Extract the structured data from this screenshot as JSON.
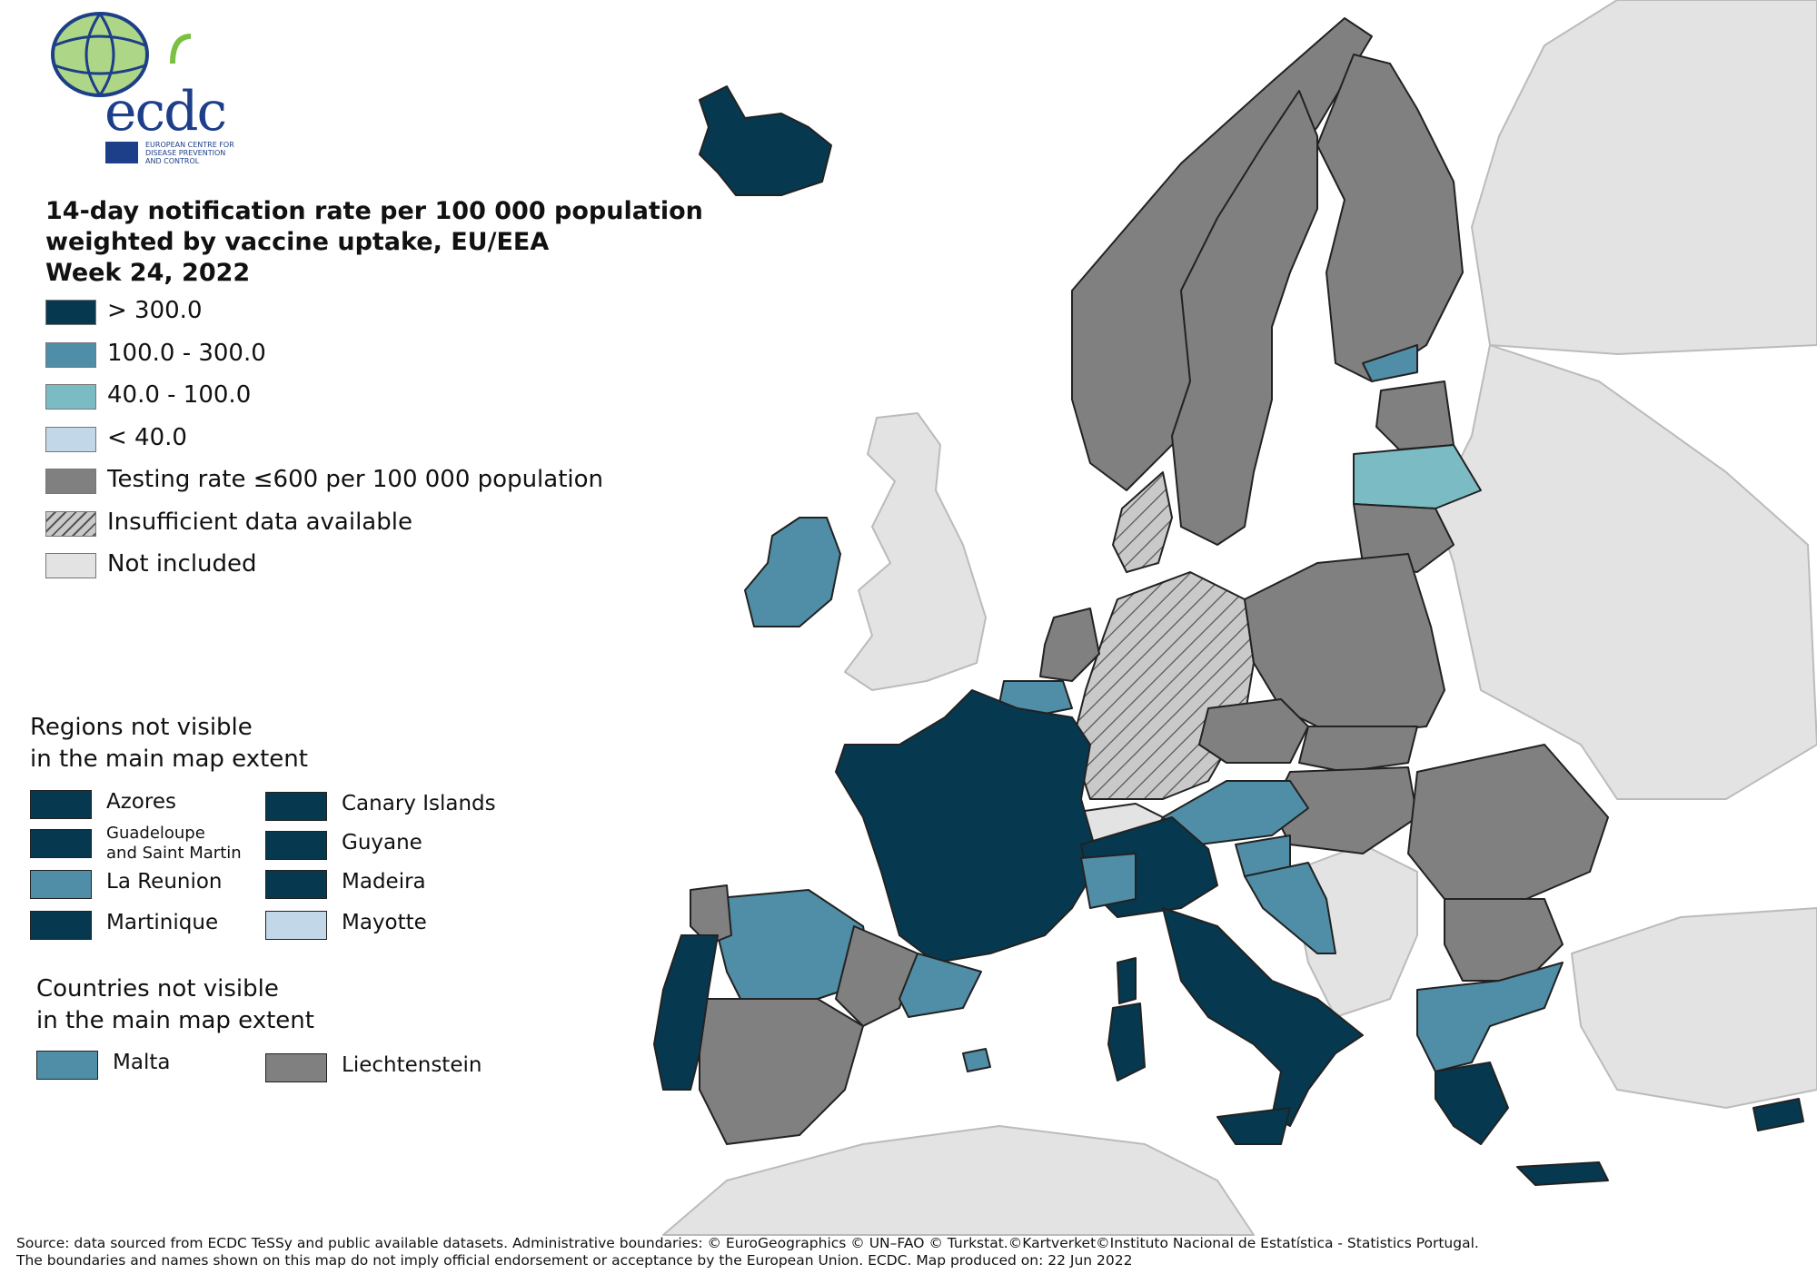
{
  "logo": {
    "wordmark": "ecdc",
    "subtitle_lines": [
      "EUROPEAN CENTRE FOR",
      "DISEASE PREVENTION",
      "AND CONTROL"
    ]
  },
  "title": {
    "line1": "14-day notification rate per 100 000 population",
    "line2": "weighted by vaccine uptake, EU/EEA",
    "line3": "Week 24, 2022"
  },
  "colors": {
    "gt300": "#06394f",
    "r100_300": "#4f8ea6",
    "r40_100": "#7bbcc4",
    "lt40": "#c2d8e8",
    "testing": "#808080",
    "insufficient": "#c9c9c9",
    "not_included": "#e3e3e3",
    "sea": "#ffffff"
  },
  "legend": [
    {
      "label": "> 300.0",
      "color": "#06394f"
    },
    {
      "label": "100.0 - 300.0",
      "color": "#4f8ea6"
    },
    {
      "label": "40.0 - 100.0",
      "color": "#7bbcc4"
    },
    {
      "label": "< 40.0",
      "color": "#c2d8e8"
    },
    {
      "label": "Testing rate ≤600 per 100 000 population",
      "color": "#808080"
    },
    {
      "label": "Insufficient data available",
      "color": "hatched"
    },
    {
      "label": "Not included",
      "color": "#e3e3e3"
    }
  ],
  "regions_section": {
    "title_line1": "Regions not visible",
    "title_line2": "in the main map extent",
    "items": [
      {
        "label": "Azores",
        "color": "#06394f"
      },
      {
        "label": "Canary Islands",
        "color": "#06394f"
      },
      {
        "label": "Guadeloupe",
        "label2": "and Saint Martin",
        "color": "#06394f"
      },
      {
        "label": "Guyane",
        "color": "#06394f"
      },
      {
        "label": "La Reunion",
        "color": "#4f8ea6"
      },
      {
        "label": "Madeira",
        "color": "#06394f"
      },
      {
        "label": "Martinique",
        "color": "#06394f"
      },
      {
        "label": "Mayotte",
        "color": "#c2d8e8"
      }
    ]
  },
  "countries_section": {
    "title_line1": "Countries not visible",
    "title_line2": "in the main map extent",
    "items": [
      {
        "label": "Malta",
        "color": "#4f8ea6"
      },
      {
        "label": "Liechtenstein",
        "color": "#808080"
      }
    ]
  },
  "footer": {
    "line1": "Source: data sourced from ECDC TeSSy and public available datasets. Administrative boundaries: © EuroGeographics © UN–FAO © Turkstat.©Kartverket©Instituto Nacional de Estatística - Statistics Portugal.",
    "line2": "The boundaries and names shown on this map do not imply official endorsement or acceptance by the European Union. ECDC. Map produced on: 22 Jun 2022"
  }
}
